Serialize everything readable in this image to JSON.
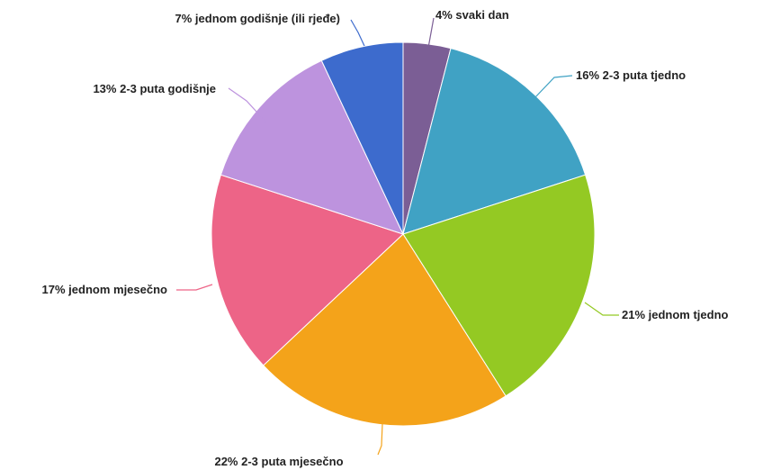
{
  "chart_data": {
    "type": "pie",
    "title": "",
    "start_angle_deg": 0,
    "direction": "clockwise",
    "slices": [
      {
        "label": "4% svaki dan",
        "value": 4,
        "color": "#7b5e95"
      },
      {
        "label": "16% 2-3 puta tjedno",
        "value": 16,
        "color": "#40a2c4"
      },
      {
        "label": "21% jednom tjedno",
        "value": 21,
        "color": "#94c923"
      },
      {
        "label": "22% 2-3 puta mjesečno",
        "value": 22,
        "color": "#f4a31a"
      },
      {
        "label": "17% jednom mjesečno",
        "value": 17,
        "color": "#ed6487"
      },
      {
        "label": "13% 2-3 puta godišnje",
        "value": 13,
        "color": "#bd93de"
      },
      {
        "label": "7% jednom godišnje (ili rjeđe)",
        "value": 7,
        "color": "#3d6bcd"
      }
    ]
  }
}
